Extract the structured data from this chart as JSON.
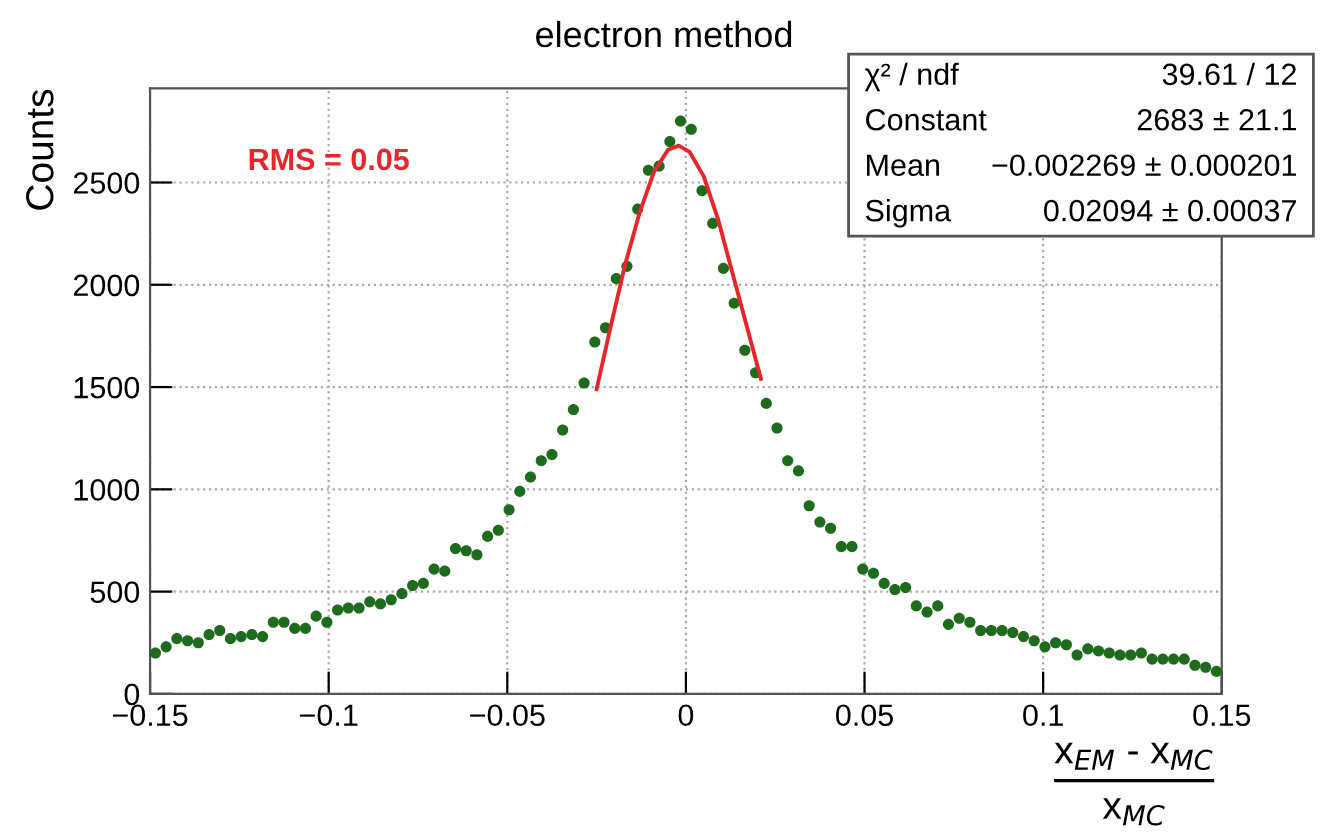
{
  "chart_data": {
    "type": "scatter",
    "title": "electron method",
    "ylabel": "Counts",
    "xlabel": "x$_{EM}$ - x$_{MC}$\nx$_{MC}$",
    "xlim": [
      -0.15,
      0.15
    ],
    "ylim": [
      0,
      2960
    ],
    "xticks": [
      {
        "value": -0.15,
        "label": "−0.15"
      },
      {
        "value": -0.1,
        "label": "−0.1"
      },
      {
        "value": -0.05,
        "label": "−0.05"
      },
      0,
      0.05,
      0.1,
      0.15
    ],
    "yticks": [
      0,
      500,
      1000,
      1500,
      2000,
      2500
    ],
    "grid": true,
    "series": [
      {
        "marker": "circle",
        "color": "#1e6b1e",
        "x": [
          -0.1485,
          -0.1455,
          -0.1425,
          -0.1395,
          -0.1365,
          -0.1335,
          -0.1305,
          -0.1275,
          -0.1245,
          -0.1215,
          -0.1185,
          -0.1155,
          -0.1125,
          -0.1095,
          -0.1065,
          -0.1035,
          -0.1005,
          -0.0975,
          -0.0945,
          -0.0915,
          -0.0885,
          -0.0855,
          -0.0825,
          -0.0795,
          -0.0765,
          -0.0735,
          -0.0705,
          -0.0675,
          -0.0645,
          -0.0615,
          -0.0585,
          -0.0555,
          -0.0525,
          -0.0495,
          -0.0465,
          -0.0435,
          -0.0405,
          -0.0375,
          -0.0345,
          -0.0315,
          -0.0285,
          -0.0255,
          -0.0225,
          -0.0195,
          -0.0165,
          -0.0135,
          -0.0105,
          -0.0075,
          -0.0045,
          -0.0015,
          0.0015,
          0.0045,
          0.0075,
          0.0105,
          0.0135,
          0.0165,
          0.0195,
          0.0225,
          0.0255,
          0.0285,
          0.0315,
          0.0345,
          0.0375,
          0.0405,
          0.0435,
          0.0465,
          0.0495,
          0.0525,
          0.0555,
          0.0585,
          0.0615,
          0.0645,
          0.0675,
          0.0705,
          0.0735,
          0.0765,
          0.0795,
          0.0825,
          0.0855,
          0.0885,
          0.0915,
          0.0945,
          0.0975,
          0.1005,
          0.1035,
          0.1065,
          0.1095,
          0.1125,
          0.1155,
          0.1185,
          0.1215,
          0.1245,
          0.1275,
          0.1305,
          0.1335,
          0.1365,
          0.1395,
          0.1425,
          0.1455,
          0.1485
        ],
        "values": [
          200,
          230,
          270,
          260,
          250,
          290,
          310,
          270,
          280,
          290,
          280,
          350,
          350,
          320,
          320,
          380,
          350,
          410,
          420,
          420,
          450,
          440,
          460,
          490,
          530,
          540,
          610,
          600,
          710,
          700,
          680,
          770,
          800,
          900,
          990,
          1060,
          1140,
          1170,
          1290,
          1390,
          1520,
          1720,
          1790,
          2030,
          2090,
          2370,
          2560,
          2580,
          2700,
          2800,
          2760,
          2460,
          2300,
          2080,
          1910,
          1680,
          1570,
          1420,
          1300,
          1140,
          1090,
          920,
          840,
          810,
          720,
          720,
          610,
          590,
          540,
          510,
          520,
          430,
          400,
          430,
          340,
          370,
          350,
          310,
          310,
          310,
          300,
          280,
          260,
          230,
          250,
          240,
          190,
          220,
          210,
          200,
          190,
          190,
          200,
          170,
          170,
          170,
          170,
          140,
          130,
          110
        ]
      },
      {
        "type": "line",
        "color": "#e8262a",
        "marker": "none",
        "x": [
          -0.025,
          -0.021,
          -0.017,
          -0.013,
          -0.009,
          -0.005,
          -0.002,
          0.001,
          0.005,
          0.009,
          0.013,
          0.017,
          0.021
        ],
        "values": [
          1490,
          1800,
          2100,
          2350,
          2550,
          2660,
          2680,
          2650,
          2530,
          2320,
          2060,
          1800,
          1540
        ]
      }
    ],
    "annotations": [
      "RMS = 0.05",
      "χ² / ndf",
      "39.61 / 12",
      "Constant",
      "2683 ± 21.1",
      "Mean",
      "−0.002269 ± 0.000201",
      "Sigma",
      "0.02094 ± 0.00037"
    ]
  }
}
